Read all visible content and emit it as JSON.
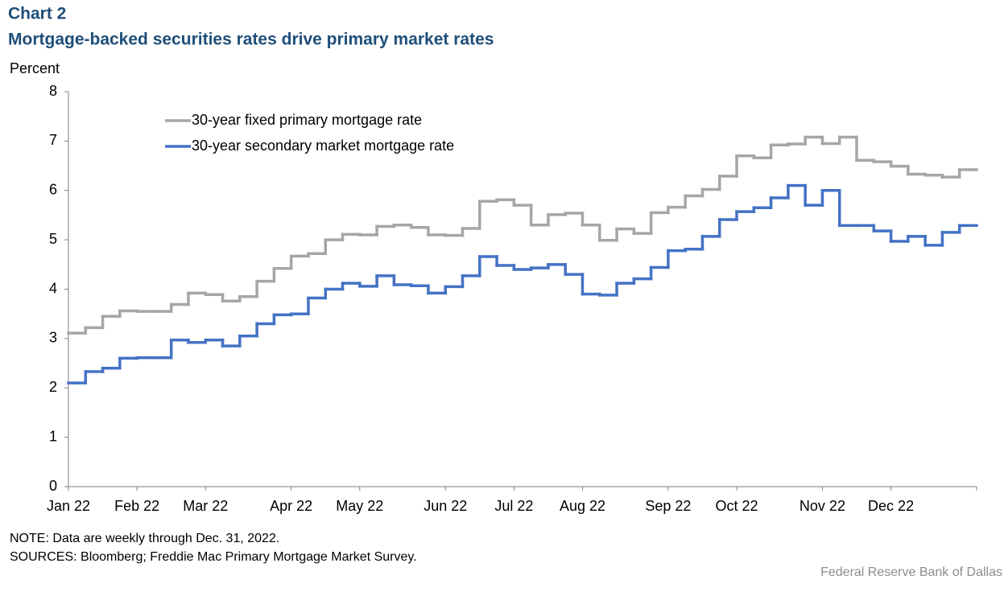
{
  "chart_data": {
    "type": "step",
    "chart_label": "Chart 2",
    "title": "Mortgage-backed securities rates drive primary market rates",
    "y_label": "Percent",
    "note": "NOTE: Data are weekly through Dec. 31, 2022.",
    "sources": "SOURCES: Bloomberg; Freddie Mac Primary Mortgage Market Survey.",
    "credit": "Federal Reserve  Bank of Dallas",
    "categories": [
      "Jan 22",
      null,
      null,
      null,
      "Feb 22",
      null,
      null,
      null,
      "Mar 22",
      null,
      null,
      null,
      null,
      "Apr 22",
      null,
      null,
      null,
      "May 22",
      null,
      null,
      null,
      null,
      "Jun 22",
      null,
      null,
      null,
      "Jul 22",
      null,
      null,
      null,
      "Aug 22",
      null,
      null,
      null,
      null,
      "Sep 22",
      null,
      null,
      null,
      "Oct 22",
      null,
      null,
      null,
      null,
      "Nov 22",
      null,
      null,
      null,
      "Dec 22",
      null,
      null,
      null,
      null
    ],
    "series": [
      {
        "name": "30-year fixed primary mortgage rate",
        "color": "#a6a6a6",
        "values": [
          3.11,
          3.22,
          3.45,
          3.56,
          3.55,
          3.55,
          3.69,
          3.92,
          3.89,
          3.76,
          3.85,
          4.16,
          4.42,
          4.67,
          4.72,
          5.0,
          5.11,
          5.1,
          5.27,
          5.3,
          5.25,
          5.1,
          5.09,
          5.23,
          5.78,
          5.81,
          5.7,
          5.3,
          5.51,
          5.54,
          5.3,
          4.99,
          5.22,
          5.13,
          5.55,
          5.66,
          5.89,
          6.02,
          6.29,
          6.7,
          6.66,
          6.92,
          6.94,
          7.08,
          6.95,
          7.08,
          6.61,
          6.58,
          6.49,
          6.33,
          6.31,
          6.27,
          6.42
        ]
      },
      {
        "name": "30-year secondary market mortgage rate",
        "color": "#4472c4",
        "values": [
          2.1,
          2.33,
          2.4,
          2.6,
          2.61,
          2.61,
          2.97,
          2.92,
          2.97,
          2.85,
          3.05,
          3.3,
          3.48,
          3.5,
          3.82,
          4.0,
          4.12,
          4.06,
          4.27,
          4.09,
          4.07,
          3.92,
          4.05,
          4.27,
          4.66,
          4.48,
          4.4,
          4.43,
          4.5,
          4.3,
          3.9,
          3.88,
          4.12,
          4.21,
          4.44,
          4.78,
          4.81,
          5.07,
          5.41,
          5.57,
          5.65,
          5.85,
          6.1,
          5.7,
          6.0,
          5.29,
          5.29,
          5.18,
          4.97,
          5.07,
          4.89,
          5.15,
          5.29
        ]
      }
    ],
    "ylim": [
      0,
      8
    ],
    "yticks": [
      0,
      1,
      2,
      3,
      4,
      5,
      6,
      7,
      8
    ],
    "grid": false,
    "legend": "upper left"
  }
}
